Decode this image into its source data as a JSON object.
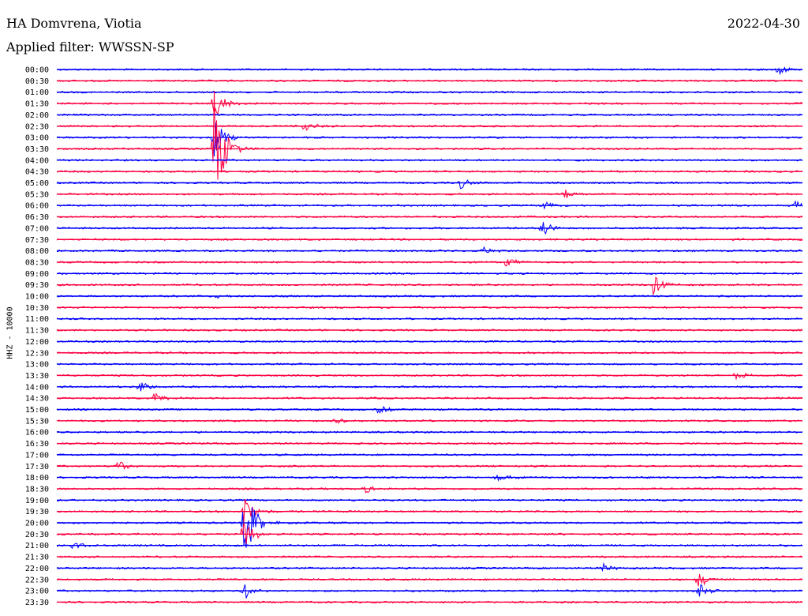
{
  "header": {
    "station": "HA Domvrena, Viotia",
    "filter": "Applied filter: WWSSN-SP",
    "date": "2022-04-30"
  },
  "chart_data": {
    "type": "line",
    "title": "HA Domvrena, Viotia",
    "subtitle": "Applied filter: WWSSN-SP",
    "ylabel": "HHZ - 10000",
    "colors": [
      "#0000ff",
      "#ff0040"
    ],
    "row_labels": [
      "00:00",
      "00:30",
      "01:00",
      "01:30",
      "02:00",
      "02:30",
      "03:00",
      "03:30",
      "04:00",
      "04:30",
      "05:00",
      "05:30",
      "06:00",
      "06:30",
      "07:00",
      "07:30",
      "08:00",
      "08:30",
      "09:00",
      "09:30",
      "10:00",
      "10:30",
      "11:00",
      "11:30",
      "12:00",
      "12:30",
      "13:00",
      "13:30",
      "14:00",
      "14:30",
      "15:00",
      "15:30",
      "16:00",
      "16:30",
      "17:00",
      "17:30",
      "18:00",
      "18:30",
      "19:00",
      "19:30",
      "20:00",
      "20:30",
      "21:00",
      "21:30",
      "22:00",
      "22:30",
      "23:00",
      "23:30"
    ],
    "events": [
      {
        "row": 0,
        "x": 0.965,
        "amp": 1.2
      },
      {
        "row": 3,
        "x": 0.21,
        "amp": 3.0
      },
      {
        "row": 5,
        "x": 0.33,
        "amp": 1.0
      },
      {
        "row": 6,
        "x": 0.21,
        "amp": 4.0
      },
      {
        "row": 7,
        "x": 0.21,
        "amp": 12.0
      },
      {
        "row": 10,
        "x": 0.54,
        "amp": 1.2
      },
      {
        "row": 11,
        "x": 0.68,
        "amp": 1.0
      },
      {
        "row": 12,
        "x": 0.65,
        "amp": 1.5
      },
      {
        "row": 12,
        "x": 0.99,
        "amp": 0.8
      },
      {
        "row": 14,
        "x": 0.65,
        "amp": 2.0
      },
      {
        "row": 16,
        "x": 0.57,
        "amp": 0.9
      },
      {
        "row": 17,
        "x": 0.6,
        "amp": 1.2
      },
      {
        "row": 19,
        "x": 0.8,
        "amp": 2.0
      },
      {
        "row": 20,
        "x": 0.21,
        "amp": 0.7
      },
      {
        "row": 27,
        "x": 0.91,
        "amp": 0.8
      },
      {
        "row": 28,
        "x": 0.11,
        "amp": 1.2
      },
      {
        "row": 29,
        "x": 0.13,
        "amp": 1.2
      },
      {
        "row": 30,
        "x": 0.43,
        "amp": 0.8
      },
      {
        "row": 31,
        "x": 0.37,
        "amp": 0.8
      },
      {
        "row": 35,
        "x": 0.08,
        "amp": 1.2
      },
      {
        "row": 36,
        "x": 0.59,
        "amp": 0.9
      },
      {
        "row": 37,
        "x": 0.41,
        "amp": 1.0
      },
      {
        "row": 39,
        "x": 0.25,
        "amp": 3.0
      },
      {
        "row": 40,
        "x": 0.25,
        "amp": 8.0
      },
      {
        "row": 41,
        "x": 0.25,
        "amp": 3.0
      },
      {
        "row": 42,
        "x": 0.02,
        "amp": 0.9
      },
      {
        "row": 44,
        "x": 0.73,
        "amp": 1.0
      },
      {
        "row": 45,
        "x": 0.86,
        "amp": 1.5
      },
      {
        "row": 46,
        "x": 0.86,
        "amp": 1.5
      },
      {
        "row": 46,
        "x": 0.25,
        "amp": 2.0
      }
    ]
  }
}
